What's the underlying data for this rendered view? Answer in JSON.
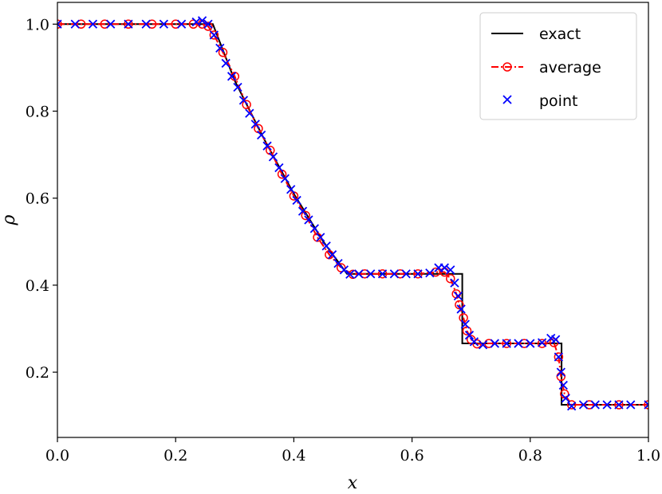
{
  "chart_data": {
    "type": "line",
    "xlabel": "x",
    "ylabel": "ρ",
    "xlim": [
      0.0,
      1.0
    ],
    "ylim": [
      0.05,
      1.05
    ],
    "grid": false,
    "legend_position": "top-right",
    "x_ticks": [
      "0.0",
      "0.2",
      "0.4",
      "0.6",
      "0.8",
      "1.0"
    ],
    "y_ticks": [
      "0.2",
      "0.4",
      "0.6",
      "0.8",
      "1.0"
    ],
    "series": [
      {
        "name": "exact",
        "style": "solid-line",
        "color": "#000000",
        "x": [
          0.0,
          0.263,
          0.3,
          0.35,
          0.4,
          0.45,
          0.49,
          0.685,
          0.685,
          0.853,
          0.853,
          1.0
        ],
        "y": [
          1.0,
          1.0,
          0.87,
          0.735,
          0.61,
          0.5,
          0.426,
          0.426,
          0.266,
          0.266,
          0.125,
          0.125
        ]
      },
      {
        "name": "average",
        "style": "dashdot-circle",
        "color": "#ff0000",
        "x": [
          0.0,
          0.04,
          0.08,
          0.12,
          0.16,
          0.2,
          0.23,
          0.245,
          0.255,
          0.265,
          0.28,
          0.3,
          0.32,
          0.34,
          0.36,
          0.38,
          0.4,
          0.42,
          0.44,
          0.46,
          0.48,
          0.5,
          0.52,
          0.55,
          0.58,
          0.61,
          0.64,
          0.655,
          0.665,
          0.675,
          0.68,
          0.687,
          0.693,
          0.7,
          0.71,
          0.73,
          0.76,
          0.79,
          0.82,
          0.84,
          0.848,
          0.852,
          0.858,
          0.87,
          0.9,
          0.95,
          1.0
        ],
        "y": [
          1.0,
          1.0,
          1.0,
          1.0,
          1.0,
          1.0,
          1.0,
          1.0,
          0.995,
          0.975,
          0.935,
          0.88,
          0.815,
          0.76,
          0.71,
          0.655,
          0.605,
          0.56,
          0.51,
          0.47,
          0.44,
          0.425,
          0.426,
          0.426,
          0.426,
          0.426,
          0.43,
          0.43,
          0.415,
          0.38,
          0.355,
          0.325,
          0.295,
          0.275,
          0.265,
          0.266,
          0.266,
          0.266,
          0.266,
          0.268,
          0.235,
          0.19,
          0.15,
          0.125,
          0.125,
          0.125,
          0.125
        ]
      },
      {
        "name": "point",
        "style": "x-marker",
        "color": "#0000ff",
        "x": [
          0.0,
          0.03,
          0.06,
          0.09,
          0.12,
          0.15,
          0.18,
          0.21,
          0.235,
          0.245,
          0.255,
          0.265,
          0.275,
          0.285,
          0.295,
          0.305,
          0.315,
          0.325,
          0.335,
          0.345,
          0.355,
          0.365,
          0.375,
          0.385,
          0.395,
          0.405,
          0.415,
          0.425,
          0.435,
          0.445,
          0.455,
          0.465,
          0.475,
          0.485,
          0.495,
          0.51,
          0.53,
          0.55,
          0.57,
          0.59,
          0.61,
          0.63,
          0.645,
          0.655,
          0.665,
          0.672,
          0.678,
          0.683,
          0.69,
          0.697,
          0.705,
          0.72,
          0.74,
          0.76,
          0.78,
          0.8,
          0.82,
          0.835,
          0.843,
          0.848,
          0.852,
          0.856,
          0.86,
          0.87,
          0.89,
          0.91,
          0.93,
          0.95,
          0.97,
          1.0
        ],
        "y": [
          1.0,
          1.0,
          1.0,
          1.0,
          1.0,
          1.0,
          1.0,
          1.0,
          1.005,
          1.008,
          1.0,
          0.975,
          0.945,
          0.91,
          0.88,
          0.855,
          0.825,
          0.795,
          0.77,
          0.745,
          0.72,
          0.695,
          0.67,
          0.645,
          0.62,
          0.595,
          0.57,
          0.55,
          0.53,
          0.51,
          0.49,
          0.47,
          0.45,
          0.435,
          0.425,
          0.426,
          0.426,
          0.426,
          0.426,
          0.426,
          0.426,
          0.428,
          0.44,
          0.44,
          0.435,
          0.405,
          0.375,
          0.345,
          0.31,
          0.285,
          0.27,
          0.263,
          0.266,
          0.266,
          0.266,
          0.266,
          0.268,
          0.278,
          0.275,
          0.235,
          0.2,
          0.17,
          0.14,
          0.122,
          0.125,
          0.125,
          0.125,
          0.125,
          0.125,
          0.125
        ]
      }
    ]
  }
}
